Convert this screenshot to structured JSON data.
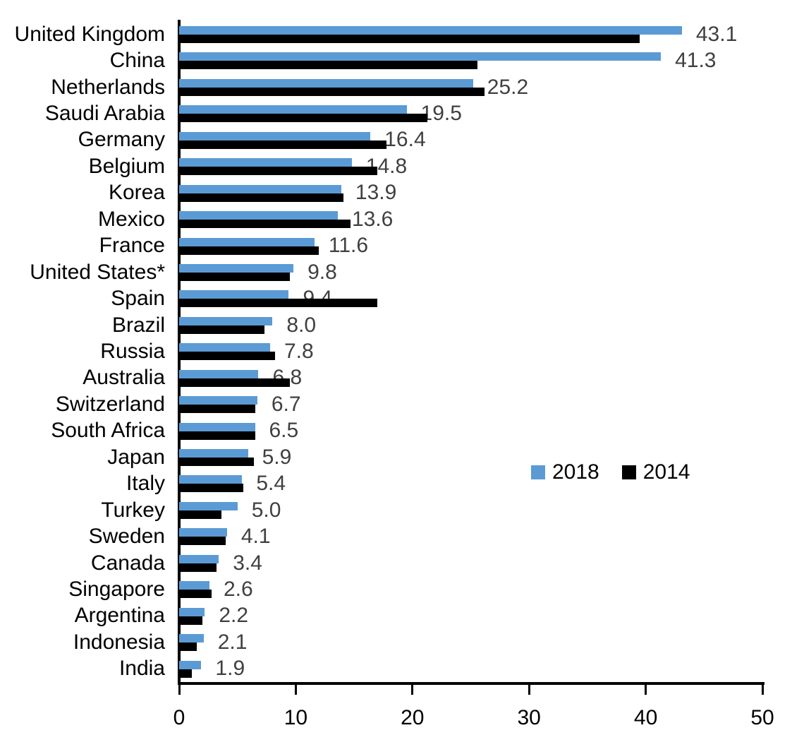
{
  "chart_data": {
    "type": "bar",
    "orientation": "horizontal",
    "categories": [
      "United Kingdom",
      "China",
      "Netherlands",
      "Saudi Arabia",
      "Germany",
      "Belgium",
      "Korea",
      "Mexico",
      "France",
      "United States*",
      "Spain",
      "Brazil",
      "Russia",
      "Australia",
      "Switzerland",
      "South Africa",
      "Japan",
      "Italy",
      "Turkey",
      "Sweden",
      "Canada",
      "Singapore",
      "Argentina",
      "Indonesia",
      "India"
    ],
    "series": [
      {
        "name": "2018",
        "color": "#5B9BD5",
        "values": [
          43.1,
          41.3,
          25.2,
          19.5,
          16.4,
          14.8,
          13.9,
          13.6,
          11.6,
          9.8,
          9.4,
          8.0,
          7.8,
          6.8,
          6.7,
          6.5,
          5.9,
          5.4,
          5.0,
          4.1,
          3.4,
          2.6,
          2.2,
          2.1,
          1.9
        ]
      },
      {
        "name": "2014",
        "color": "#000000",
        "values": [
          39.5,
          25.6,
          26.2,
          21.3,
          17.8,
          17.0,
          14.1,
          14.7,
          12.0,
          9.5,
          17.0,
          7.3,
          8.2,
          9.5,
          6.5,
          6.5,
          6.4,
          5.5,
          3.6,
          4.0,
          3.2,
          2.8,
          2.0,
          1.5,
          1.1
        ]
      }
    ],
    "data_labels": [
      "43.1",
      "41.3",
      "25.2",
      "19.5",
      "16.4",
      "14.8",
      "13.9",
      "13.6",
      "11.6",
      "9.8",
      "9.4",
      "8.0",
      "7.8",
      "6.8",
      "6.7",
      "6.5",
      "5.9",
      "5.4",
      "5.0",
      "4.1",
      "3.4",
      "2.6",
      "2.2",
      "2.1",
      "1.9"
    ],
    "data_labels_series": "2018",
    "xlim": [
      0,
      50
    ],
    "x_ticks": [
      "0",
      "10",
      "20",
      "30",
      "40",
      "50"
    ],
    "grid": false,
    "legend": {
      "position": "middle-right",
      "entries": [
        {
          "label": "2018",
          "color": "#5B9BD5"
        },
        {
          "label": "2014",
          "color": "#000000"
        }
      ]
    }
  },
  "colors": {
    "bar_2018": "#5B9BD5",
    "bar_2014": "#000000",
    "value_label": "#404040",
    "axis": "#000000",
    "background": "#ffffff"
  }
}
